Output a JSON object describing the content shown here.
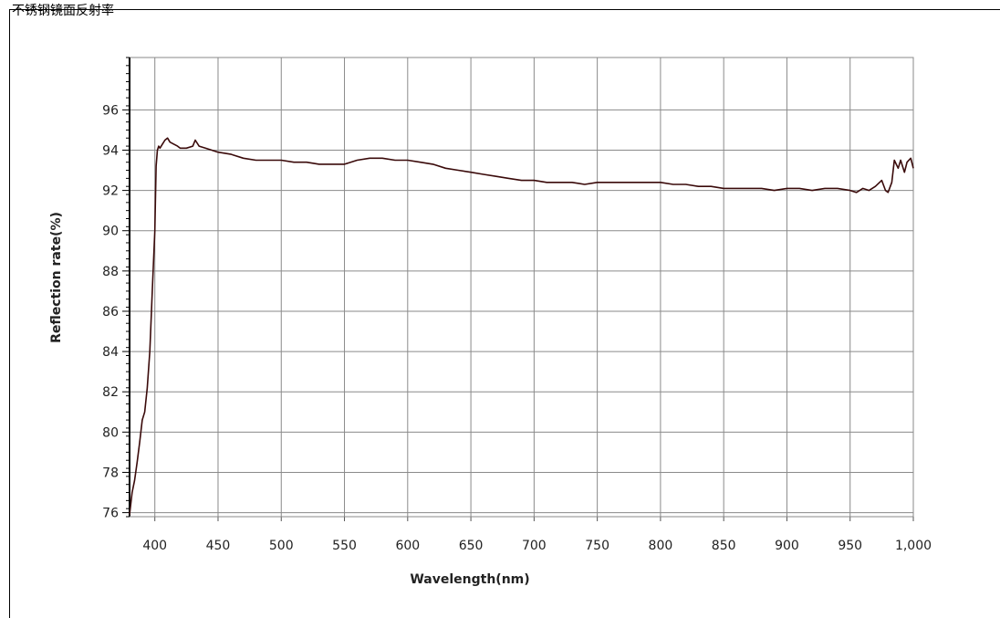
{
  "page": {
    "caption": "不锈钢镜面反射率"
  },
  "chart_data": {
    "type": "line",
    "title": "",
    "xlabel": "Wavelength(nm)",
    "ylabel": "Reflection rate(%)",
    "xlim": [
      380,
      1000
    ],
    "ylim": [
      75.8,
      98.6
    ],
    "xticks": [
      400,
      450,
      500,
      550,
      600,
      650,
      700,
      750,
      800,
      850,
      900,
      950,
      1000
    ],
    "xtick_labels": [
      "400",
      "450",
      "500",
      "550",
      "600",
      "650",
      "700",
      "750",
      "800",
      "850",
      "900",
      "950",
      "1,000"
    ],
    "yticks": [
      76,
      78,
      80,
      82,
      84,
      86,
      88,
      90,
      92,
      94,
      96
    ],
    "yminor_step": 0.4,
    "grid": true,
    "legend": "none",
    "line_color": "#3a0a0a",
    "series": [
      {
        "x": [
          380,
          382,
          384,
          386,
          388,
          390,
          392,
          394,
          396,
          398,
          400,
          401,
          402,
          403,
          404,
          406,
          408,
          410,
          412,
          415,
          418,
          420,
          425,
          430,
          432,
          435,
          440,
          445,
          450,
          460,
          470,
          480,
          490,
          500,
          510,
          520,
          530,
          540,
          550,
          560,
          570,
          580,
          590,
          600,
          610,
          620,
          630,
          640,
          650,
          660,
          670,
          680,
          690,
          700,
          710,
          720,
          730,
          740,
          750,
          760,
          770,
          780,
          790,
          800,
          810,
          820,
          830,
          840,
          850,
          860,
          870,
          880,
          890,
          900,
          910,
          920,
          930,
          940,
          950,
          955,
          960,
          965,
          970,
          975,
          978,
          980,
          983,
          985,
          988,
          990,
          993,
          995,
          998,
          1000
        ],
        "y": [
          75.9,
          77.0,
          77.6,
          78.5,
          79.5,
          80.6,
          81.0,
          82.2,
          84.0,
          87.0,
          90.0,
          93.2,
          94.0,
          94.2,
          94.1,
          94.3,
          94.5,
          94.6,
          94.4,
          94.3,
          94.2,
          94.1,
          94.1,
          94.2,
          94.5,
          94.2,
          94.1,
          94.0,
          93.9,
          93.8,
          93.6,
          93.5,
          93.5,
          93.5,
          93.4,
          93.4,
          93.3,
          93.3,
          93.3,
          93.5,
          93.6,
          93.6,
          93.5,
          93.5,
          93.4,
          93.3,
          93.1,
          93.0,
          92.9,
          92.8,
          92.7,
          92.6,
          92.5,
          92.5,
          92.4,
          92.4,
          92.4,
          92.3,
          92.4,
          92.4,
          92.4,
          92.4,
          92.4,
          92.4,
          92.3,
          92.3,
          92.2,
          92.2,
          92.1,
          92.1,
          92.1,
          92.1,
          92.0,
          92.1,
          92.1,
          92.0,
          92.1,
          92.1,
          92.0,
          91.9,
          92.1,
          92.0,
          92.2,
          92.5,
          92.0,
          91.9,
          92.4,
          93.5,
          93.1,
          93.5,
          92.9,
          93.4,
          93.6,
          93.1
        ]
      }
    ]
  }
}
